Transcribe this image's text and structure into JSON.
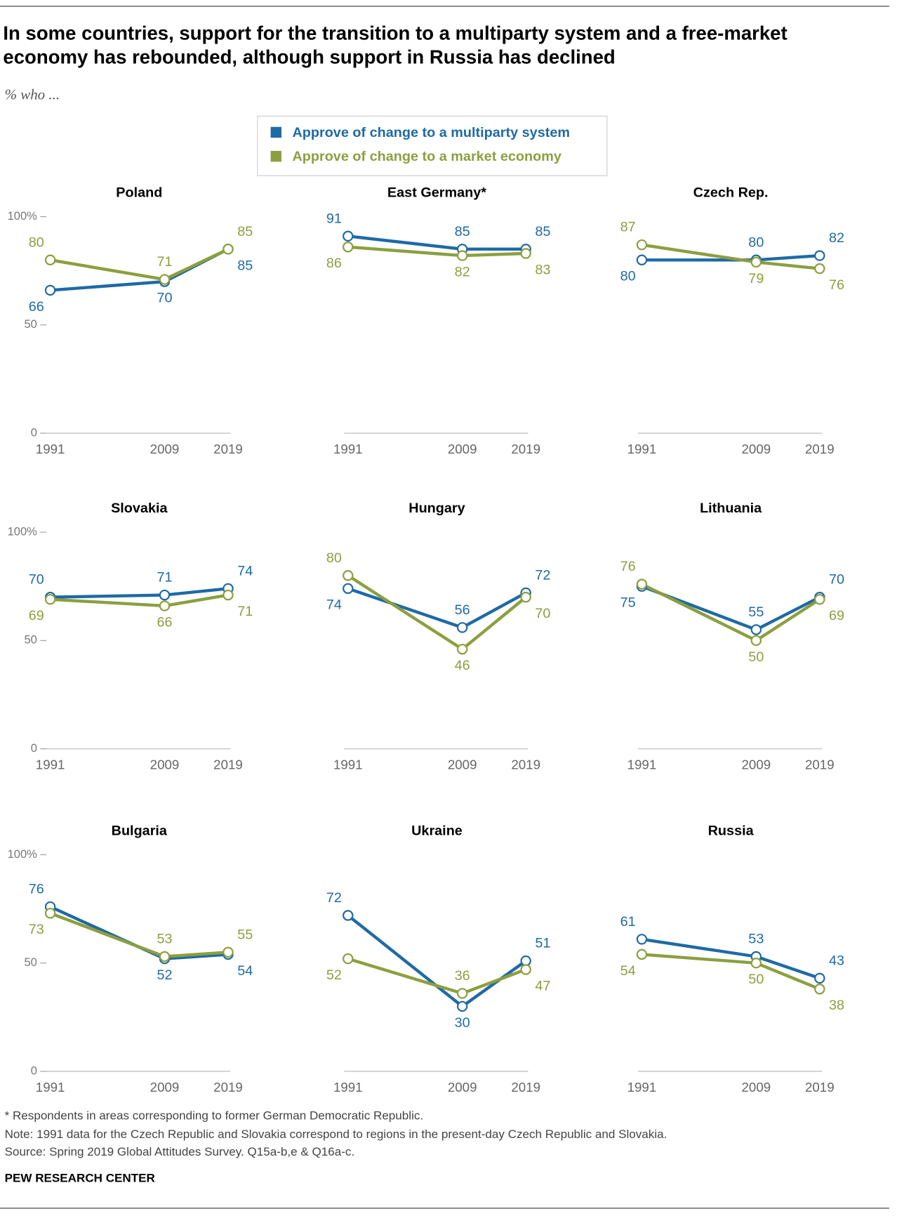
{
  "title": "In some countries, support for the transition to a multiparty system and a free-market economy has rebounded, although support in Russia has declined",
  "subtitle": "% who ...",
  "chart_data": [
    {
      "type": "line",
      "title": "Poland",
      "x": [
        1991,
        2009,
        2019
      ],
      "xlim": [
        1991,
        2019
      ],
      "xticks": [
        1991,
        2009,
        2019
      ],
      "ylim": [
        0,
        100
      ],
      "yticks": [
        0,
        50,
        {
          "value": 100,
          "label": "100%"
        }
      ],
      "series": [
        {
          "name": "Approve of change to a multiparty system",
          "color": "#1f6aa5",
          "values": [
            66,
            70,
            85
          ]
        },
        {
          "name": "Approve of change to a market economy",
          "color": "#8c9f3f",
          "values": [
            80,
            71,
            85
          ]
        }
      ]
    },
    {
      "type": "line",
      "title": "East Germany*",
      "x": [
        1991,
        2009,
        2019
      ],
      "xlim": [
        1991,
        2019
      ],
      "xticks": [
        1991,
        2009,
        2019
      ],
      "ylim": [
        0,
        100
      ],
      "series": [
        {
          "name": "Approve of change to a multiparty system",
          "color": "#1f6aa5",
          "values": [
            91,
            85,
            85
          ]
        },
        {
          "name": "Approve of change to a market economy",
          "color": "#8c9f3f",
          "values": [
            86,
            82,
            83
          ]
        }
      ]
    },
    {
      "type": "line",
      "title": "Czech Rep.",
      "x": [
        1991,
        2009,
        2019
      ],
      "xlim": [
        1991,
        2019
      ],
      "xticks": [
        1991,
        2009,
        2019
      ],
      "ylim": [
        0,
        100
      ],
      "series": [
        {
          "name": "Approve of change to a multiparty system",
          "color": "#1f6aa5",
          "values": [
            80,
            80,
            82
          ]
        },
        {
          "name": "Approve of change to a market economy",
          "color": "#8c9f3f",
          "values": [
            87,
            79,
            76
          ]
        }
      ]
    },
    {
      "type": "line",
      "title": "Slovakia",
      "x": [
        1991,
        2009,
        2019
      ],
      "xlim": [
        1991,
        2019
      ],
      "xticks": [
        1991,
        2009,
        2019
      ],
      "ylim": [
        0,
        100
      ],
      "yticks": [
        0,
        50,
        {
          "value": 100,
          "label": "100%"
        }
      ],
      "series": [
        {
          "name": "Approve of change to a multiparty system",
          "color": "#1f6aa5",
          "values": [
            70,
            71,
            74
          ]
        },
        {
          "name": "Approve of change to a market economy",
          "color": "#8c9f3f",
          "values": [
            69,
            66,
            71
          ]
        }
      ]
    },
    {
      "type": "line",
      "title": "Hungary",
      "x": [
        1991,
        2009,
        2019
      ],
      "xlim": [
        1991,
        2019
      ],
      "xticks": [
        1991,
        2009,
        2019
      ],
      "ylim": [
        0,
        100
      ],
      "series": [
        {
          "name": "Approve of change to a multiparty system",
          "color": "#1f6aa5",
          "values": [
            74,
            56,
            72
          ]
        },
        {
          "name": "Approve of change to a market economy",
          "color": "#8c9f3f",
          "values": [
            80,
            46,
            70
          ]
        }
      ]
    },
    {
      "type": "line",
      "title": "Lithuania",
      "x": [
        1991,
        2009,
        2019
      ],
      "xlim": [
        1991,
        2019
      ],
      "xticks": [
        1991,
        2009,
        2019
      ],
      "ylim": [
        0,
        100
      ],
      "series": [
        {
          "name": "Approve of change to a multiparty system",
          "color": "#1f6aa5",
          "values": [
            75,
            55,
            70
          ]
        },
        {
          "name": "Approve of change to a market economy",
          "color": "#8c9f3f",
          "values": [
            76,
            50,
            69
          ]
        }
      ]
    },
    {
      "type": "line",
      "title": "Bulgaria",
      "x": [
        1991,
        2009,
        2019
      ],
      "xlim": [
        1991,
        2019
      ],
      "xticks": [
        1991,
        2009,
        2019
      ],
      "ylim": [
        0,
        100
      ],
      "yticks": [
        0,
        50,
        {
          "value": 100,
          "label": "100%"
        }
      ],
      "series": [
        {
          "name": "Approve of change to a multiparty system",
          "color": "#1f6aa5",
          "values": [
            76,
            52,
            54
          ]
        },
        {
          "name": "Approve of change to a market economy",
          "color": "#8c9f3f",
          "values": [
            73,
            53,
            55
          ]
        }
      ]
    },
    {
      "type": "line",
      "title": "Ukraine",
      "x": [
        1991,
        2009,
        2019
      ],
      "xlim": [
        1991,
        2019
      ],
      "xticks": [
        1991,
        2009,
        2019
      ],
      "ylim": [
        0,
        100
      ],
      "series": [
        {
          "name": "Approve of change to a multiparty system",
          "color": "#1f6aa5",
          "values": [
            72,
            30,
            51
          ]
        },
        {
          "name": "Approve of change to a market economy",
          "color": "#8c9f3f",
          "values": [
            52,
            36,
            47
          ]
        }
      ]
    },
    {
      "type": "line",
      "title": "Russia",
      "x": [
        1991,
        2009,
        2019
      ],
      "xlim": [
        1991,
        2019
      ],
      "xticks": [
        1991,
        2009,
        2019
      ],
      "ylim": [
        0,
        100
      ],
      "series": [
        {
          "name": "Approve of change to a multiparty system",
          "color": "#1f6aa5",
          "values": [
            61,
            53,
            43
          ]
        },
        {
          "name": "Approve of change to a market economy",
          "color": "#8c9f3f",
          "values": [
            54,
            50,
            38
          ]
        }
      ]
    }
  ],
  "notes": [
    "* Respondents in areas corresponding to former German Democratic Republic.",
    "Note: 1991 data for the Czech Republic and Slovakia correspond to regions in the present-day Czech Republic and Slovakia.",
    "Source: Spring 2019 Global Attitudes Survey. Q15a-b,e & Q16a-c."
  ],
  "brand": "PEW RESEARCH CENTER"
}
